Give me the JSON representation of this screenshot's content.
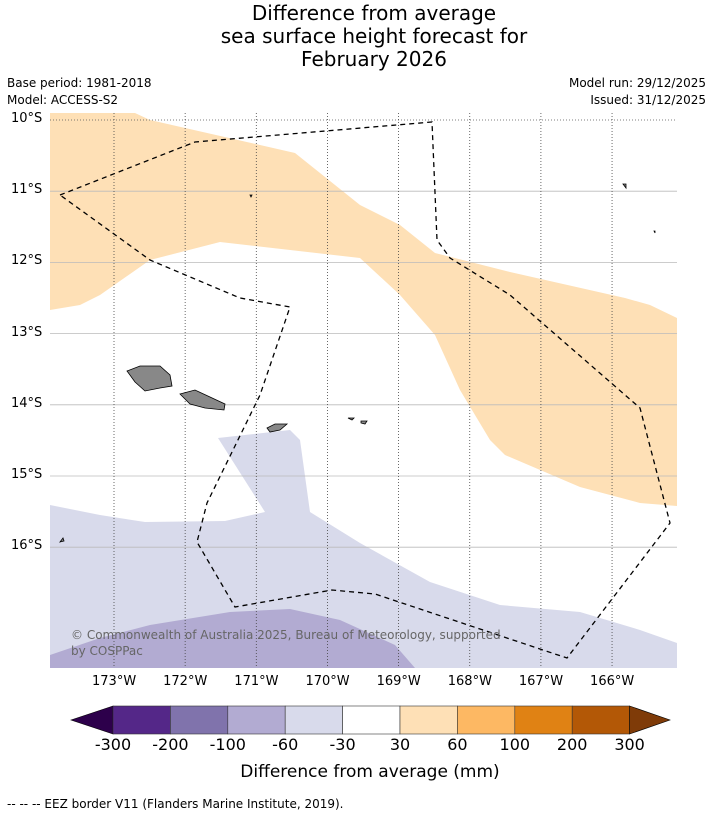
{
  "title": [
    "Difference from average",
    "sea surface height forecast for",
    "February 2026"
  ],
  "base_period": "Base period: 1981-2018",
  "model": "Model: ACCESS-S2",
  "model_run": "Model run: 29/12/2025",
  "issued": "Issued: 31/12/2025",
  "lat_labels": [
    "10°S",
    "11°S",
    "12°S",
    "13°S",
    "14°S",
    "15°S",
    "16°S"
  ],
  "lon_labels": [
    "173°W",
    "172°W",
    "171°W",
    "170°W",
    "169°W",
    "168°W",
    "167°W",
    "166°W"
  ],
  "copyright": "© Commonwealth of Australia 2025, Bureau of Meteorology, supported by COSPPac",
  "colorbar": {
    "ticks": [
      "-300",
      "-200",
      "-100",
      "-60",
      "-30",
      "30",
      "60",
      "100",
      "200",
      "300"
    ],
    "colors": [
      "#2d004b",
      "#542788",
      "#8073ac",
      "#b2abd2",
      "#d8daeb",
      "#ffffff",
      "#fee0b6",
      "#fdb863",
      "#e08214",
      "#b35806",
      "#7f3b08"
    ],
    "label": "Difference from average (mm)"
  },
  "legend_note": "-- -- -- EEZ border V11 (Flanders Marine Institute, 2019)."
}
